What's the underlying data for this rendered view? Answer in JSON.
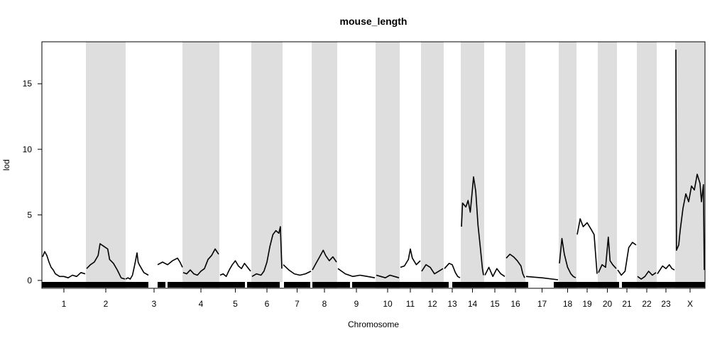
{
  "chart_data": {
    "type": "line",
    "title": "mouse_length",
    "xlabel": "Chromosome",
    "ylabel": "lod",
    "ylim": [
      -0.6,
      18.2
    ],
    "y_ticks": [
      0,
      5,
      10,
      15
    ],
    "y_tick_labels": [
      "0",
      "5",
      "10",
      "15"
    ],
    "grid": false,
    "legend": "none",
    "alternate_band_color": "#dedede",
    "line_color": "#000000",
    "chromosomes": [
      {
        "name": "1",
        "shaded": false
      },
      {
        "name": "2",
        "shaded": true
      },
      {
        "name": "3",
        "shaded": false
      },
      {
        "name": "4",
        "shaded": true
      },
      {
        "name": "5",
        "shaded": false
      },
      {
        "name": "6",
        "shaded": true
      },
      {
        "name": "7",
        "shaded": false
      },
      {
        "name": "8",
        "shaded": true
      },
      {
        "name": "9",
        "shaded": false
      },
      {
        "name": "10",
        "shaded": true
      },
      {
        "name": "11",
        "shaded": false
      },
      {
        "name": "12",
        "shaded": true
      },
      {
        "name": "13",
        "shaded": false
      },
      {
        "name": "14",
        "shaded": true
      },
      {
        "name": "15",
        "shaded": false
      },
      {
        "name": "16",
        "shaded": true
      },
      {
        "name": "17",
        "shaded": false
      },
      {
        "name": "18",
        "shaded": true
      },
      {
        "name": "19",
        "shaded": false
      },
      {
        "name": "20",
        "shaded": true
      },
      {
        "name": "21",
        "shaded": false
      },
      {
        "name": "22",
        "shaded": true
      },
      {
        "name": "23",
        "shaded": false
      },
      {
        "name": "X",
        "shaded": true
      }
    ],
    "series": [
      {
        "chromosome": "1",
        "points": [
          [
            0,
            1.8
          ],
          [
            0.05,
            2.2
          ],
          [
            0.1,
            1.9
          ],
          [
            0.15,
            1.4
          ],
          [
            0.2,
            1.0
          ],
          [
            0.25,
            0.8
          ],
          [
            0.3,
            0.5
          ],
          [
            0.4,
            0.3
          ],
          [
            0.5,
            0.3
          ],
          [
            0.6,
            0.2
          ],
          [
            0.7,
            0.4
          ],
          [
            0.8,
            0.3
          ],
          [
            0.9,
            0.6
          ],
          [
            1,
            0.5
          ]
        ]
      },
      {
        "chromosome": "2",
        "points": [
          [
            0,
            0.9
          ],
          [
            0.1,
            1.2
          ],
          [
            0.2,
            1.4
          ],
          [
            0.3,
            1.9
          ],
          [
            0.35,
            2.8
          ],
          [
            0.45,
            2.6
          ],
          [
            0.55,
            2.4
          ],
          [
            0.6,
            1.6
          ],
          [
            0.7,
            1.3
          ],
          [
            0.8,
            0.8
          ],
          [
            0.9,
            0.2
          ],
          [
            1,
            0.1
          ]
        ]
      },
      {
        "chromosome": "3",
        "points": [
          [
            0,
            0.1
          ],
          [
            0.1,
            0.2
          ],
          [
            0.2,
            0.1
          ],
          [
            0.3,
            0.4
          ],
          [
            0.4,
            1.2
          ],
          [
            0.5,
            2.1
          ],
          [
            0.55,
            1.4
          ],
          [
            0.6,
            1.2
          ],
          [
            0.8,
            0.6
          ],
          [
            1,
            0.4
          ]
        ]
      },
      {
        "chromosome": "3b",
        "points": [
          [
            0,
            1.2
          ],
          [
            0.2,
            1.4
          ],
          [
            0.4,
            1.2
          ],
          [
            0.6,
            1.5
          ],
          [
            0.8,
            1.7
          ],
          [
            0.9,
            1.4
          ],
          [
            1,
            1.0
          ]
        ]
      },
      {
        "chromosome": "4",
        "points": [
          [
            0,
            0.6
          ],
          [
            0.1,
            0.5
          ],
          [
            0.2,
            0.8
          ],
          [
            0.3,
            0.5
          ],
          [
            0.4,
            0.4
          ],
          [
            0.5,
            0.7
          ],
          [
            0.6,
            0.9
          ],
          [
            0.7,
            1.6
          ],
          [
            0.8,
            1.9
          ],
          [
            0.9,
            2.4
          ],
          [
            1,
            2.0
          ]
        ]
      },
      {
        "chromosome": "5",
        "points": [
          [
            0,
            0.4
          ],
          [
            0.1,
            0.5
          ],
          [
            0.2,
            0.3
          ],
          [
            0.3,
            0.8
          ],
          [
            0.4,
            1.2
          ],
          [
            0.5,
            1.5
          ],
          [
            0.6,
            1.1
          ],
          [
            0.7,
            0.9
          ],
          [
            0.8,
            1.3
          ],
          [
            0.9,
            1.0
          ],
          [
            1,
            0.7
          ]
        ]
      },
      {
        "chromosome": "6",
        "points": [
          [
            0,
            0.3
          ],
          [
            0.15,
            0.5
          ],
          [
            0.3,
            0.4
          ],
          [
            0.4,
            0.7
          ],
          [
            0.5,
            1.4
          ],
          [
            0.6,
            2.6
          ],
          [
            0.7,
            3.5
          ],
          [
            0.8,
            3.8
          ],
          [
            0.9,
            3.6
          ],
          [
            0.95,
            4.1
          ],
          [
            1,
            0.9
          ]
        ]
      },
      {
        "chromosome": "7",
        "points": [
          [
            0,
            1.2
          ],
          [
            0.2,
            0.8
          ],
          [
            0.4,
            0.5
          ],
          [
            0.6,
            0.4
          ],
          [
            0.8,
            0.5
          ],
          [
            1,
            0.7
          ]
        ]
      },
      {
        "chromosome": "8",
        "points": [
          [
            0,
            0.8
          ],
          [
            0.15,
            1.3
          ],
          [
            0.3,
            1.8
          ],
          [
            0.45,
            2.3
          ],
          [
            0.55,
            1.9
          ],
          [
            0.7,
            1.5
          ],
          [
            0.85,
            1.8
          ],
          [
            1,
            1.4
          ]
        ]
      },
      {
        "chromosome": "9",
        "points": [
          [
            0,
            0.9
          ],
          [
            0.2,
            0.5
          ],
          [
            0.4,
            0.3
          ],
          [
            0.6,
            0.4
          ],
          [
            0.8,
            0.3
          ],
          [
            1,
            0.2
          ]
        ]
      },
      {
        "chromosome": "10",
        "points": [
          [
            0,
            0.4
          ],
          [
            0.2,
            0.3
          ],
          [
            0.4,
            0.2
          ],
          [
            0.6,
            0.4
          ],
          [
            0.8,
            0.3
          ],
          [
            1,
            0.2
          ]
        ]
      },
      {
        "chromosome": "11",
        "points": [
          [
            0,
            1.0
          ],
          [
            0.2,
            1.1
          ],
          [
            0.4,
            1.6
          ],
          [
            0.5,
            2.4
          ],
          [
            0.6,
            1.7
          ],
          [
            0.8,
            1.2
          ],
          [
            1,
            1.5
          ]
        ]
      },
      {
        "chromosome": "12",
        "points": [
          [
            0,
            0.7
          ],
          [
            0.2,
            1.2
          ],
          [
            0.4,
            1.0
          ],
          [
            0.6,
            0.5
          ],
          [
            0.8,
            0.7
          ],
          [
            1,
            0.9
          ]
        ]
      },
      {
        "chromosome": "13",
        "points": [
          [
            0,
            0.9
          ],
          [
            0.3,
            1.3
          ],
          [
            0.5,
            1.2
          ],
          [
            0.7,
            0.6
          ],
          [
            0.85,
            0.3
          ],
          [
            1,
            0.2
          ]
        ]
      },
      {
        "chromosome": "14",
        "points": [
          [
            0,
            4.1
          ],
          [
            0.05,
            5.9
          ],
          [
            0.2,
            5.6
          ],
          [
            0.3,
            6.1
          ],
          [
            0.4,
            5.2
          ],
          [
            0.5,
            7.0
          ],
          [
            0.55,
            7.9
          ],
          [
            0.65,
            6.8
          ],
          [
            0.75,
            4.2
          ],
          [
            0.85,
            2.6
          ],
          [
            0.95,
            0.9
          ],
          [
            1,
            0.4
          ]
        ]
      },
      {
        "chromosome": "15",
        "points": [
          [
            0,
            0.4
          ],
          [
            0.2,
            1.0
          ],
          [
            0.4,
            0.3
          ],
          [
            0.6,
            0.9
          ],
          [
            0.8,
            0.5
          ],
          [
            1,
            0.3
          ]
        ]
      },
      {
        "chromosome": "16",
        "points": [
          [
            0,
            1.7
          ],
          [
            0.2,
            2.0
          ],
          [
            0.4,
            1.8
          ],
          [
            0.6,
            1.5
          ],
          [
            0.8,
            1.1
          ],
          [
            0.9,
            0.5
          ],
          [
            1,
            0.2
          ]
        ]
      },
      {
        "chromosome": "17",
        "points": [
          [
            0,
            0.3
          ],
          [
            0.5,
            0.2
          ],
          [
            1,
            0.05
          ]
        ]
      },
      {
        "chromosome": "18",
        "points": [
          [
            0,
            1.3
          ],
          [
            0.15,
            3.2
          ],
          [
            0.3,
            2.0
          ],
          [
            0.5,
            1.0
          ],
          [
            0.7,
            0.5
          ],
          [
            0.85,
            0.3
          ],
          [
            1,
            0.2
          ]
        ]
      },
      {
        "chromosome": "19",
        "points": [
          [
            0,
            3.5
          ],
          [
            0.15,
            4.7
          ],
          [
            0.3,
            4.1
          ],
          [
            0.5,
            4.4
          ],
          [
            0.7,
            3.9
          ],
          [
            0.85,
            3.5
          ],
          [
            1,
            0.5
          ]
        ]
      },
      {
        "chromosome": "20",
        "points": [
          [
            0,
            0.6
          ],
          [
            0.2,
            1.2
          ],
          [
            0.4,
            1.0
          ],
          [
            0.55,
            3.3
          ],
          [
            0.65,
            1.5
          ],
          [
            0.8,
            1.2
          ],
          [
            1,
            0.9
          ]
        ]
      },
      {
        "chromosome": "21",
        "points": [
          [
            0,
            0.8
          ],
          [
            0.2,
            0.4
          ],
          [
            0.4,
            0.7
          ],
          [
            0.6,
            2.5
          ],
          [
            0.8,
            2.9
          ],
          [
            1,
            2.7
          ]
        ]
      },
      {
        "chromosome": "22",
        "points": [
          [
            0,
            0.3
          ],
          [
            0.2,
            0.1
          ],
          [
            0.4,
            0.3
          ],
          [
            0.6,
            0.7
          ],
          [
            0.8,
            0.4
          ],
          [
            1,
            0.6
          ]
        ]
      },
      {
        "chromosome": "23",
        "points": [
          [
            0,
            0.5
          ],
          [
            0.3,
            1.1
          ],
          [
            0.5,
            0.9
          ],
          [
            0.7,
            1.2
          ],
          [
            0.85,
            0.9
          ],
          [
            1,
            0.8
          ]
        ]
      },
      {
        "chromosome": "X",
        "points": [
          [
            0,
            17.6
          ],
          [
            0.02,
            2.3
          ],
          [
            0.1,
            2.7
          ],
          [
            0.15,
            3.8
          ],
          [
            0.25,
            5.5
          ],
          [
            0.35,
            6.6
          ],
          [
            0.45,
            6.0
          ],
          [
            0.55,
            7.2
          ],
          [
            0.65,
            6.9
          ],
          [
            0.75,
            8.1
          ],
          [
            0.85,
            7.4
          ],
          [
            0.9,
            6.0
          ],
          [
            0.97,
            7.3
          ],
          [
            1,
            0.8
          ]
        ]
      }
    ]
  }
}
